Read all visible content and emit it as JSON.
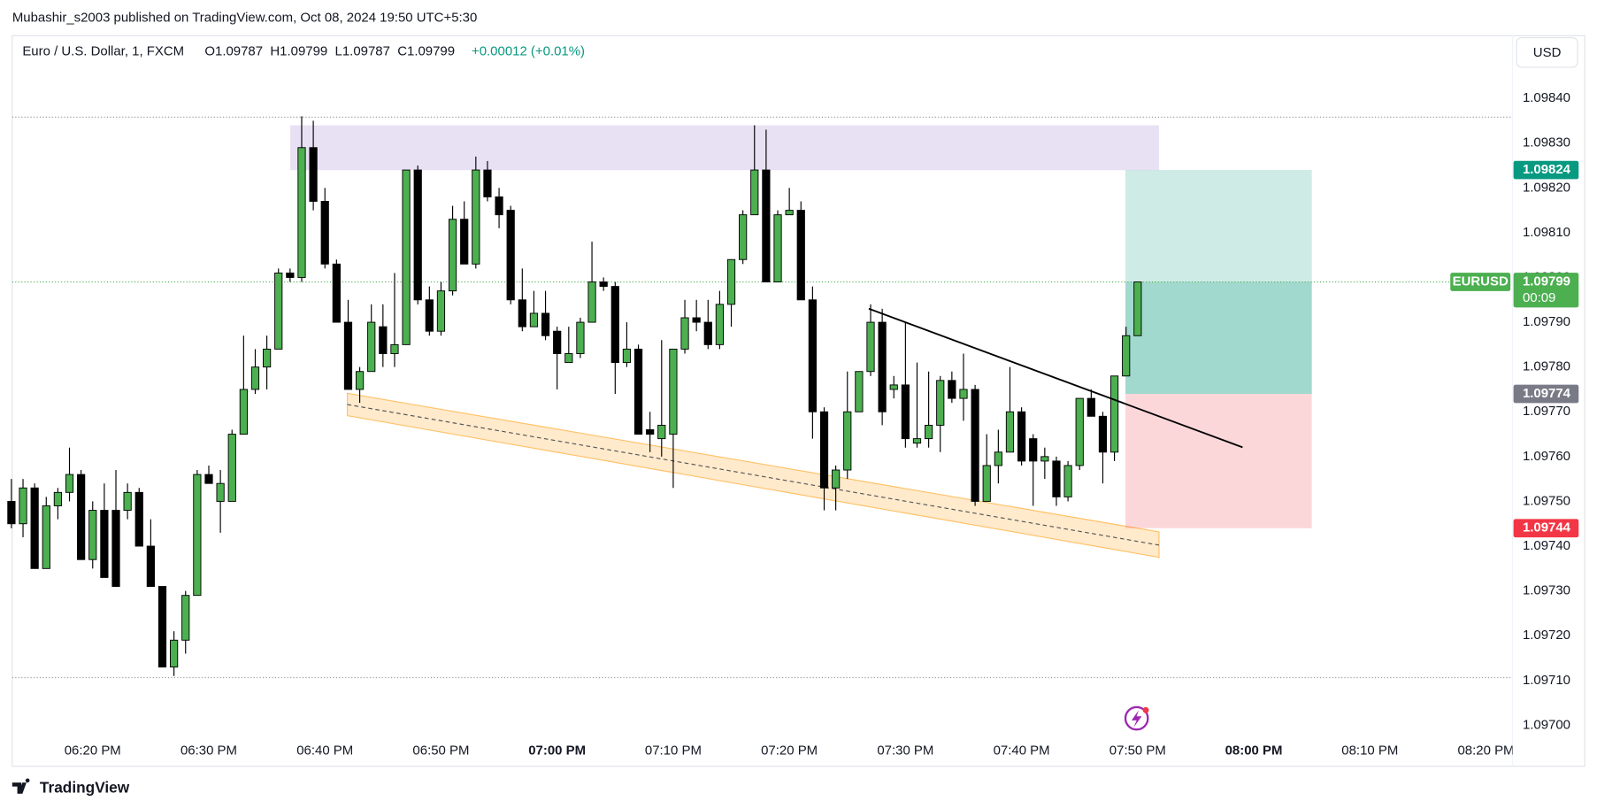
{
  "header": {
    "attribution": "Mubashir_s2003 published on TradingView.com, Oct 08, 2024 19:50 UTC+5:30",
    "symbol": "Euro / U.S. Dollar, 1, FXCM",
    "ohlc": "O1.09787  H1.09799  L1.09787  C1.09799",
    "change": "+0.00012 (+0.01%)",
    "currency": "USD"
  },
  "footer": {
    "brand": "TradingView"
  },
  "chart_data": {
    "type": "candlestick",
    "up_color": "#4caf50",
    "down_color": "#000000",
    "x": [
      "06:13 PM",
      "06:14 PM",
      "06:15 PM",
      "06:16 PM",
      "06:17 PM",
      "06:18 PM",
      "06:19 PM",
      "06:20 PM",
      "06:21 PM",
      "06:22 PM",
      "06:23 PM",
      "06:24 PM",
      "06:25 PM",
      "06:26 PM",
      "06:27 PM",
      "06:28 PM",
      "06:29 PM",
      "06:30 PM",
      "06:31 PM",
      "06:32 PM",
      "06:33 PM",
      "06:34 PM",
      "06:35 PM",
      "06:36 PM",
      "06:37 PM",
      "06:38 PM",
      "06:39 PM",
      "06:40 PM",
      "06:41 PM",
      "06:42 PM",
      "06:43 PM",
      "06:44 PM",
      "06:45 PM",
      "06:46 PM",
      "06:47 PM",
      "06:48 PM",
      "06:49 PM",
      "06:50 PM",
      "06:51 PM",
      "06:52 PM",
      "06:53 PM",
      "06:54 PM",
      "06:55 PM",
      "06:56 PM",
      "06:57 PM",
      "06:58 PM",
      "06:59 PM",
      "07:00 PM",
      "07:01 PM",
      "07:02 PM",
      "07:03 PM",
      "07:04 PM",
      "07:05 PM",
      "07:06 PM",
      "07:07 PM",
      "07:08 PM",
      "07:09 PM",
      "07:10 PM",
      "07:11 PM",
      "07:12 PM",
      "07:13 PM",
      "07:14 PM",
      "07:15 PM",
      "07:16 PM",
      "07:17 PM",
      "07:18 PM",
      "07:19 PM",
      "07:20 PM",
      "07:21 PM",
      "07:22 PM",
      "07:23 PM",
      "07:24 PM",
      "07:25 PM",
      "07:26 PM",
      "07:27 PM",
      "07:28 PM",
      "07:29 PM",
      "07:30 PM",
      "07:31 PM",
      "07:32 PM",
      "07:33 PM",
      "07:34 PM",
      "07:35 PM",
      "07:36 PM",
      "07:37 PM",
      "07:38 PM",
      "07:39 PM",
      "07:40 PM",
      "07:41 PM",
      "07:42 PM",
      "07:43 PM",
      "07:44 PM",
      "07:45 PM",
      "07:46 PM",
      "07:47 PM",
      "07:48 PM",
      "07:49 PM",
      "07:50 PM"
    ],
    "open": [
      1.0975,
      1.09745,
      1.09753,
      1.09735,
      1.09749,
      1.09752,
      1.09756,
      1.09737,
      1.09748,
      1.09748,
      1.09748,
      1.09752,
      1.0974,
      1.09731,
      1.09713,
      1.09719,
      1.09729,
      1.09756,
      1.0975,
      1.0975,
      1.09765,
      1.09775,
      1.0978,
      1.09784,
      1.09801,
      1.098,
      1.09829,
      1.09817,
      1.09803,
      1.0979,
      1.09775,
      1.09779,
      1.09789,
      1.09783,
      1.09785,
      1.09824,
      1.09795,
      1.09788,
      1.09797,
      1.09813,
      1.09803,
      1.09824,
      1.09818,
      1.09815,
      1.09795,
      1.09789,
      1.09792,
      1.09788,
      1.09781,
      1.09783,
      1.0979,
      1.09799,
      1.09798,
      1.09781,
      1.09784,
      1.09766,
      1.09764,
      1.09765,
      1.09784,
      1.09791,
      1.0979,
      1.09785,
      1.09794,
      1.09804,
      1.09814,
      1.09824,
      1.09799,
      1.09814,
      1.09815,
      1.09795,
      1.0977,
      1.09753,
      1.09757,
      1.0977,
      1.09779,
      1.0979,
      1.09775,
      1.09776,
      1.09763,
      1.09764,
      1.09767,
      1.09777,
      1.09773,
      1.09775,
      1.0975,
      1.09758,
      1.09761,
      1.0977,
      1.09764,
      1.09759,
      1.09759,
      1.09751,
      1.09758,
      1.09773,
      1.09769,
      1.09761,
      1.09778,
      1.09787
    ],
    "high": [
      1.09755,
      1.09755,
      1.09754,
      1.09751,
      1.09753,
      1.09762,
      1.09757,
      1.0975,
      1.09754,
      1.09757,
      1.09754,
      1.09753,
      1.09746,
      1.09731,
      1.09721,
      1.0973,
      1.09757,
      1.09758,
      1.09757,
      1.09766,
      1.09787,
      1.09784,
      1.09787,
      1.09802,
      1.09802,
      1.09836,
      1.09835,
      1.0982,
      1.09804,
      1.09795,
      1.0978,
      1.09794,
      1.09794,
      1.09801,
      1.09824,
      1.09825,
      1.09798,
      1.09799,
      1.09816,
      1.09817,
      1.09827,
      1.09826,
      1.0982,
      1.09816,
      1.09802,
      1.09797,
      1.09797,
      1.09789,
      1.09789,
      1.09791,
      1.09808,
      1.098,
      1.09799,
      1.0979,
      1.09785,
      1.0977,
      1.09786,
      1.09784,
      1.09795,
      1.09795,
      1.09795,
      1.09797,
      1.09804,
      1.09815,
      1.09834,
      1.09833,
      1.09815,
      1.0982,
      1.09817,
      1.09798,
      1.09771,
      1.09758,
      1.09779,
      1.09779,
      1.09794,
      1.09793,
      1.09778,
      1.0979,
      1.09781,
      1.09779,
      1.09778,
      1.09779,
      1.09783,
      1.09776,
      1.09765,
      1.09766,
      1.0978,
      1.09771,
      1.09765,
      1.09762,
      1.0976,
      1.09759,
      1.09773,
      1.09775,
      1.0977,
      1.09778,
      1.09789,
      1.09799
    ],
    "low": [
      1.09744,
      1.09742,
      1.09735,
      1.09735,
      1.09746,
      1.0975,
      1.09737,
      1.09735,
      1.09733,
      1.09731,
      1.09746,
      1.0974,
      1.09731,
      1.09713,
      1.09711,
      1.09716,
      1.09729,
      1.09754,
      1.09743,
      1.0975,
      1.09765,
      1.09774,
      1.09775,
      1.09784,
      1.09799,
      1.09799,
      1.09815,
      1.09802,
      1.0979,
      1.09775,
      1.09772,
      1.09779,
      1.0978,
      1.0978,
      1.09785,
      1.09794,
      1.09787,
      1.09787,
      1.09796,
      1.09803,
      1.09802,
      1.09817,
      1.09811,
      1.09794,
      1.09788,
      1.09789,
      1.09786,
      1.09775,
      1.09781,
      1.09782,
      1.0979,
      1.09797,
      1.09774,
      1.0978,
      1.09765,
      1.09761,
      1.0976,
      1.09753,
      1.09783,
      1.09788,
      1.09784,
      1.09784,
      1.09789,
      1.09803,
      1.09814,
      1.09799,
      1.09799,
      1.09814,
      1.09795,
      1.09764,
      1.09748,
      1.09748,
      1.09755,
      1.0977,
      1.09778,
      1.09767,
      1.09773,
      1.09762,
      1.09762,
      1.09762,
      1.09761,
      1.09772,
      1.09768,
      1.09749,
      1.0975,
      1.09754,
      1.09761,
      1.09758,
      1.09749,
      1.09755,
      1.09749,
      1.0975,
      1.09757,
      1.09769,
      1.09754,
      1.09759,
      1.09778,
      1.09787
    ],
    "close": [
      1.09745,
      1.09753,
      1.09735,
      1.09749,
      1.09752,
      1.09756,
      1.09737,
      1.09748,
      1.09733,
      1.09731,
      1.09752,
      1.0974,
      1.09731,
      1.09713,
      1.09719,
      1.09729,
      1.09756,
      1.09754,
      1.09754,
      1.09765,
      1.09775,
      1.0978,
      1.09784,
      1.09801,
      1.098,
      1.09829,
      1.09817,
      1.09803,
      1.0979,
      1.09775,
      1.09779,
      1.0979,
      1.09783,
      1.09785,
      1.09824,
      1.09795,
      1.09788,
      1.09797,
      1.09813,
      1.09803,
      1.09824,
      1.09818,
      1.09814,
      1.09795,
      1.09789,
      1.09792,
      1.09787,
      1.09783,
      1.09783,
      1.0979,
      1.09799,
      1.09798,
      1.09781,
      1.09784,
      1.09765,
      1.09765,
      1.09767,
      1.09784,
      1.09791,
      1.0979,
      1.09785,
      1.09794,
      1.09804,
      1.09814,
      1.09824,
      1.09799,
      1.09814,
      1.09815,
      1.09795,
      1.0977,
      1.09753,
      1.09757,
      1.0977,
      1.09779,
      1.0979,
      1.0977,
      1.09776,
      1.09764,
      1.09764,
      1.09767,
      1.09777,
      1.09773,
      1.09775,
      1.0975,
      1.09758,
      1.09761,
      1.0977,
      1.09759,
      1.09759,
      1.0976,
      1.09751,
      1.09758,
      1.09773,
      1.09769,
      1.09761,
      1.09778,
      1.09787,
      1.09799
    ],
    "xticks": [
      "06:20 PM",
      "06:30 PM",
      "06:40 PM",
      "06:50 PM",
      "07:00 PM",
      "07:10 PM",
      "07:20 PM",
      "07:30 PM",
      "07:40 PM",
      "07:50 PM",
      "08:00 PM",
      "08:10 PM",
      "08:20 PM"
    ],
    "ylim": [
      1.09697,
      1.09854
    ],
    "yticks": [
      {
        "value": 1.097,
        "label": "1.09700"
      },
      {
        "value": 1.0971,
        "label": "1.09710"
      },
      {
        "value": 1.0972,
        "label": "1.09720"
      },
      {
        "value": 1.0973,
        "label": "1.09730"
      },
      {
        "value": 1.0974,
        "label": "1.09740"
      },
      {
        "value": 1.0975,
        "label": "1.09750"
      },
      {
        "value": 1.0976,
        "label": "1.09760"
      },
      {
        "value": 1.0977,
        "label": "1.09770"
      },
      {
        "value": 1.0978,
        "label": "1.09780"
      },
      {
        "value": 1.0979,
        "label": "1.09790"
      },
      {
        "value": 1.098,
        "label": "1.09800"
      },
      {
        "value": 1.0981,
        "label": "1.09810"
      },
      {
        "value": 1.0982,
        "label": "1.09820"
      },
      {
        "value": 1.0983,
        "label": "1.09830"
      },
      {
        "value": 1.0984,
        "label": "1.09840"
      }
    ],
    "price_tags": [
      {
        "value": 1.09824,
        "label": "1.09824",
        "color": "#089981"
      },
      {
        "value": 1.09799,
        "label": "1.09799",
        "color": "#4caf50",
        "symbol": "EURUSD",
        "countdown": "00:09"
      },
      {
        "value": 1.09774,
        "label": "1.09774",
        "color": "#787b86"
      },
      {
        "value": 1.09744,
        "label": "1.09744",
        "color": "#f23645"
      }
    ]
  }
}
